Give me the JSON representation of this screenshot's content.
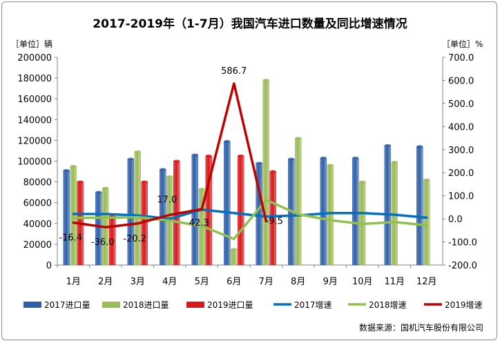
{
  "chart_data": {
    "type": "bar",
    "title": "2017-2019年（1-7月）我国汽车进口数量及同比增速情况",
    "left_unit": "［单位］辆",
    "right_unit": "［单位］%",
    "categories": [
      "1月",
      "2月",
      "3月",
      "4月",
      "5月",
      "6月",
      "7月",
      "8月",
      "9月",
      "10月",
      "11月",
      "12月"
    ],
    "y_left": {
      "min": 0,
      "max": 200000,
      "step": 20000,
      "ticks": [
        "0",
        "20000",
        "40000",
        "60000",
        "80000",
        "100000",
        "120000",
        "140000",
        "160000",
        "180000",
        "200000"
      ]
    },
    "y_right": {
      "min": -200,
      "max": 700,
      "step": 100,
      "ticks": [
        "-200.0",
        "-100.0",
        "0.0",
        "100.0",
        "200.0",
        "300.0",
        "400.0",
        "500.0",
        "600.0",
        "700.0"
      ]
    },
    "bar_series": [
      {
        "name": "2017进口量",
        "color": "#2e5fa8",
        "values": [
          91000,
          70000,
          102000,
          92000,
          106000,
          119000,
          98000,
          102000,
          103000,
          103000,
          115000,
          114000
        ]
      },
      {
        "name": "2018进口量",
        "color": "#9bbb59",
        "values": [
          95000,
          74000,
          109000,
          85000,
          73000,
          15000,
          178000,
          122000,
          96000,
          80000,
          99000,
          82000
        ]
      },
      {
        "name": "2019进口量",
        "color": "#d7191c",
        "values": [
          80000,
          47000,
          80000,
          100000,
          105000,
          105000,
          90000,
          null,
          null,
          null,
          null,
          null
        ]
      }
    ],
    "line_series": [
      {
        "name": "2017增速",
        "color": "#0070c0",
        "values": [
          21,
          21,
          15,
          0,
          40,
          25,
          10,
          15,
          25,
          25,
          18,
          5
        ]
      },
      {
        "name": "2018增速",
        "color": "#92c050",
        "values": [
          4,
          5,
          7,
          -8,
          -31,
          -87,
          82,
          20,
          -6,
          -22,
          -14,
          -28
        ]
      },
      {
        "name": "2019增速",
        "color": "#c00000",
        "values": [
          -16.4,
          -36.0,
          -20.2,
          17.0,
          42.3,
          586.7,
          -9.5,
          null,
          null,
          null,
          null,
          null
        ]
      }
    ],
    "data_labels": [
      "-16.4",
      "-36.0",
      "-20.2",
      "17.0",
      "42.3",
      "586.7",
      "-9.5"
    ],
    "legend_position": "bottom",
    "grid": false,
    "source": "数据来源：国机汽车股份有限公司"
  }
}
